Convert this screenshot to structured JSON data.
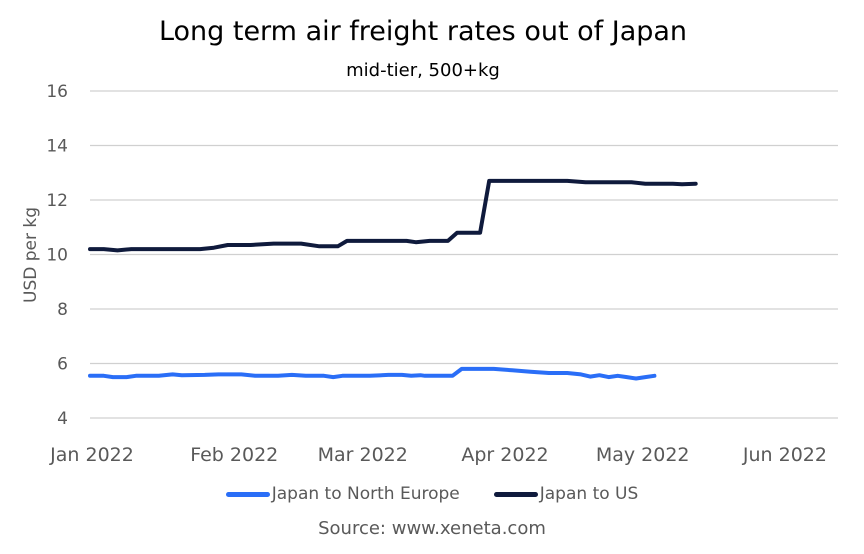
{
  "chart_data": {
    "type": "line",
    "title": "Long term air freight rates out of Japan",
    "subtitle": "mid-tier, 500+kg",
    "xlabel": "",
    "ylabel": "USD per kg",
    "ylim": [
      4,
      16
    ],
    "yticks": [
      "4",
      "6",
      "8",
      "10",
      "12",
      "14",
      "16"
    ],
    "xlim": [
      "2022-01-01",
      "2022-06-13"
    ],
    "xticks": [
      {
        "date": "2022-01-01",
        "label": "Jan 2022"
      },
      {
        "date": "2022-02-01",
        "label": "Feb 2022"
      },
      {
        "date": "2022-03-01",
        "label": "Mar 2022"
      },
      {
        "date": "2022-04-01",
        "label": "Apr 2022"
      },
      {
        "date": "2022-05-01",
        "label": "May 2022"
      },
      {
        "date": "2022-06-01",
        "label": "Jun 2022"
      }
    ],
    "grid": "horizontal",
    "legend_position": "bottom",
    "source": "Source: www.xeneta.com",
    "series": [
      {
        "name": "Japan to North Europe",
        "color": "#2a6ef7",
        "points": [
          [
            "2022-01-01",
            5.55
          ],
          [
            "2022-01-04",
            5.55
          ],
          [
            "2022-01-06",
            5.5
          ],
          [
            "2022-01-09",
            5.5
          ],
          [
            "2022-01-11",
            5.55
          ],
          [
            "2022-01-16",
            5.55
          ],
          [
            "2022-01-19",
            5.6
          ],
          [
            "2022-01-21",
            5.57
          ],
          [
            "2022-01-26",
            5.58
          ],
          [
            "2022-01-29",
            5.6
          ],
          [
            "2022-02-03",
            5.6
          ],
          [
            "2022-02-06",
            5.55
          ],
          [
            "2022-02-11",
            5.55
          ],
          [
            "2022-02-14",
            5.58
          ],
          [
            "2022-02-17",
            5.55
          ],
          [
            "2022-02-21",
            5.55
          ],
          [
            "2022-02-23",
            5.5
          ],
          [
            "2022-02-25",
            5.55
          ],
          [
            "2022-03-03",
            5.55
          ],
          [
            "2022-03-07",
            5.58
          ],
          [
            "2022-03-10",
            5.58
          ],
          [
            "2022-03-12",
            5.55
          ],
          [
            "2022-03-14",
            5.57
          ],
          [
            "2022-03-15",
            5.55
          ],
          [
            "2022-03-18",
            5.55
          ],
          [
            "2022-03-21",
            5.55
          ],
          [
            "2022-03-23",
            5.8
          ],
          [
            "2022-03-30",
            5.8
          ],
          [
            "2022-04-03",
            5.75
          ],
          [
            "2022-04-07",
            5.7
          ],
          [
            "2022-04-11",
            5.65
          ],
          [
            "2022-04-15",
            5.65
          ],
          [
            "2022-04-18",
            5.6
          ],
          [
            "2022-04-20",
            5.52
          ],
          [
            "2022-04-22",
            5.57
          ],
          [
            "2022-04-24",
            5.5
          ],
          [
            "2022-04-26",
            5.55
          ],
          [
            "2022-04-28",
            5.5
          ],
          [
            "2022-04-30",
            5.45
          ],
          [
            "2022-05-02",
            5.5
          ],
          [
            "2022-05-04",
            5.55
          ]
        ]
      },
      {
        "name": "Japan to US",
        "color": "#0f1a3c",
        "points": [
          [
            "2022-01-01",
            10.2
          ],
          [
            "2022-01-04",
            10.2
          ],
          [
            "2022-01-07",
            10.15
          ],
          [
            "2022-01-10",
            10.2
          ],
          [
            "2022-01-14",
            10.2
          ],
          [
            "2022-01-20",
            10.2
          ],
          [
            "2022-01-25",
            10.2
          ],
          [
            "2022-01-28",
            10.25
          ],
          [
            "2022-01-31",
            10.35
          ],
          [
            "2022-02-05",
            10.35
          ],
          [
            "2022-02-10",
            10.4
          ],
          [
            "2022-02-16",
            10.4
          ],
          [
            "2022-02-20",
            10.3
          ],
          [
            "2022-02-24",
            10.3
          ],
          [
            "2022-02-26",
            10.5
          ],
          [
            "2022-03-06",
            10.5
          ],
          [
            "2022-03-11",
            10.5
          ],
          [
            "2022-03-13",
            10.45
          ],
          [
            "2022-03-16",
            10.5
          ],
          [
            "2022-03-20",
            10.5
          ],
          [
            "2022-03-22",
            10.8
          ],
          [
            "2022-03-27",
            10.8
          ],
          [
            "2022-03-29",
            12.7
          ],
          [
            "2022-04-15",
            12.7
          ],
          [
            "2022-04-19",
            12.65
          ],
          [
            "2022-04-29",
            12.65
          ],
          [
            "2022-05-02",
            12.6
          ],
          [
            "2022-05-08",
            12.6
          ],
          [
            "2022-05-10",
            12.58
          ],
          [
            "2022-05-13",
            12.6
          ]
        ]
      }
    ]
  },
  "legend": {
    "items": [
      "Japan to North Europe",
      "Japan to US"
    ]
  }
}
